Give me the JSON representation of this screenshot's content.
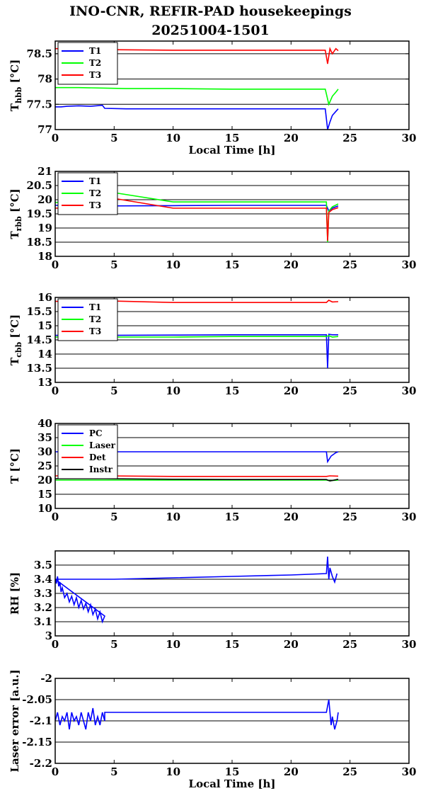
{
  "page": {
    "title_line1": "INO-CNR, REFIR-PAD housekeepings",
    "title_line2": "20251004-1501"
  },
  "chart_data": [
    {
      "type": "line",
      "ylabel_main": "T",
      "ylabel_sub": "hbb",
      "ylabel_tail": " [°C]",
      "xlabel": "Local Time [h]",
      "xlim": [
        0,
        30
      ],
      "ylim": [
        77,
        78.75
      ],
      "xticks": [
        0,
        5,
        10,
        15,
        20,
        25,
        30
      ],
      "yticks": [
        77,
        77.5,
        78,
        78.5
      ],
      "ytick_labels": [
        "77",
        "77.5",
        "78",
        "78.5"
      ],
      "grid": true,
      "legend_position": "top-left",
      "series": [
        {
          "name": "T1",
          "color": "#0000ff",
          "x": [
            0,
            0.5,
            1,
            2,
            3,
            4,
            4.2,
            6,
            10,
            15,
            20,
            22.9,
            23.1,
            23.3,
            23.5,
            23.8,
            24
          ],
          "y": [
            77.45,
            77.45,
            77.46,
            77.47,
            77.46,
            77.48,
            77.42,
            77.41,
            77.41,
            77.41,
            77.41,
            77.41,
            77.0,
            77.15,
            77.28,
            77.36,
            77.41
          ]
        },
        {
          "name": "T2",
          "color": "#00ff00",
          "x": [
            0,
            2,
            4.2,
            6,
            10,
            15,
            20,
            22.9,
            23.2,
            23.5,
            23.8,
            24
          ],
          "y": [
            77.83,
            77.83,
            77.82,
            77.81,
            77.81,
            77.8,
            77.8,
            77.8,
            77.5,
            77.66,
            77.74,
            77.8
          ]
        },
        {
          "name": "T3",
          "color": "#ff0000",
          "x": [
            0,
            2,
            4.2,
            10,
            15,
            20,
            22.9,
            23.1,
            23.3,
            23.5,
            23.8,
            24
          ],
          "y": [
            78.6,
            78.6,
            78.58,
            78.57,
            78.57,
            78.57,
            78.57,
            78.3,
            78.6,
            78.5,
            78.6,
            78.56
          ]
        }
      ]
    },
    {
      "type": "line",
      "ylabel_main": "T",
      "ylabel_sub": "rbb",
      "ylabel_tail": " [°C]",
      "xlabel": "",
      "xlim": [
        0,
        30
      ],
      "ylim": [
        18,
        21
      ],
      "xticks": [
        0,
        5,
        10,
        15,
        20,
        25,
        30
      ],
      "yticks": [
        18,
        18.5,
        19,
        19.5,
        20,
        20.5,
        21
      ],
      "ytick_labels": [
        "18",
        "18.5",
        "19",
        "19.5",
        "20",
        "20.5",
        "21"
      ],
      "grid": true,
      "legend_position": "top-left",
      "series": [
        {
          "name": "T1",
          "color": "#0000ff",
          "x": [
            0,
            4,
            4.2,
            10,
            15,
            20,
            23,
            23.2,
            23.5,
            24
          ],
          "y": [
            19.8,
            19.8,
            19.78,
            19.79,
            19.8,
            19.8,
            19.8,
            19.6,
            19.7,
            19.78
          ]
        },
        {
          "name": "T2",
          "color": "#00ff00",
          "x": [
            0,
            4,
            4.2,
            10,
            15,
            20,
            23,
            23.1,
            23.2,
            23.5,
            24
          ],
          "y": [
            19.9,
            19.95,
            20.3,
            19.92,
            19.92,
            19.92,
            19.92,
            18.5,
            19.6,
            19.75,
            19.85
          ]
        },
        {
          "name": "T3",
          "color": "#ff0000",
          "x": [
            0,
            4,
            4.2,
            10,
            15,
            20,
            23,
            23.1,
            23.2,
            23.5,
            24
          ],
          "y": [
            19.7,
            19.72,
            20.1,
            19.7,
            19.7,
            19.7,
            19.7,
            18.55,
            19.55,
            19.65,
            19.72
          ]
        }
      ]
    },
    {
      "type": "line",
      "ylabel_main": "T",
      "ylabel_sub": "cbb",
      "ylabel_tail": " [°C]",
      "xlabel": "",
      "xlim": [
        0,
        30
      ],
      "ylim": [
        13,
        16
      ],
      "xticks": [
        0,
        5,
        10,
        15,
        20,
        25,
        30
      ],
      "yticks": [
        13,
        13.5,
        14,
        14.5,
        15,
        15.5,
        16
      ],
      "ytick_labels": [
        "13",
        "13.5",
        "14",
        "14.5",
        "15",
        "15.5",
        "16"
      ],
      "grid": true,
      "legend_position": "top-left",
      "series": [
        {
          "name": "T1",
          "color": "#0000ff",
          "x": [
            0,
            4.2,
            10,
            15,
            20,
            23,
            23.1,
            23.2,
            23.5,
            24
          ],
          "y": [
            14.66,
            14.66,
            14.67,
            14.68,
            14.68,
            14.68,
            13.5,
            14.7,
            14.68,
            14.68
          ]
        },
        {
          "name": "T2",
          "color": "#00ff00",
          "x": [
            0,
            4.2,
            10,
            15,
            20,
            23,
            23.2,
            23.5,
            24
          ],
          "y": [
            14.6,
            14.6,
            14.6,
            14.62,
            14.62,
            14.62,
            14.65,
            14.6,
            14.62
          ]
        },
        {
          "name": "T3",
          "color": "#ff0000",
          "x": [
            0,
            4.2,
            10,
            15,
            20,
            23,
            23.2,
            23.5,
            24
          ],
          "y": [
            15.86,
            15.88,
            15.82,
            15.82,
            15.82,
            15.82,
            15.9,
            15.84,
            15.85
          ]
        }
      ]
    },
    {
      "type": "line",
      "ylabel_main": "T [°C]",
      "ylabel_sub": "",
      "ylabel_tail": "",
      "xlabel": "",
      "xlim": [
        0,
        30
      ],
      "ylim": [
        10,
        40
      ],
      "xticks": [
        0,
        5,
        10,
        15,
        20,
        25,
        30
      ],
      "yticks": [
        10,
        15,
        20,
        25,
        30,
        35,
        40
      ],
      "ytick_labels": [
        "10",
        "15",
        "20",
        "25",
        "30",
        "35",
        "40"
      ],
      "grid": true,
      "legend_position": "top-left",
      "series": [
        {
          "name": "PC",
          "color": "#0000ff",
          "x": [
            0,
            4.2,
            10,
            15,
            20,
            23,
            23.1,
            23.4,
            23.8,
            24
          ],
          "y": [
            30,
            30,
            30,
            30,
            30,
            30,
            26.5,
            28.5,
            29.7,
            30
          ]
        },
        {
          "name": "Laser",
          "color": "#00ff00",
          "x": [
            0,
            4.2,
            10,
            15,
            20,
            23,
            23.3,
            24
          ],
          "y": [
            20,
            20,
            20,
            20,
            20,
            20,
            19.8,
            20
          ]
        },
        {
          "name": "Det",
          "color": "#ff0000",
          "x": [
            0,
            4.2,
            10,
            15,
            20,
            23,
            23.3,
            24
          ],
          "y": [
            21.5,
            21.5,
            21.3,
            21.3,
            21.3,
            21.3,
            21.5,
            21.4
          ]
        },
        {
          "name": "Instr",
          "color": "#000000",
          "x": [
            0,
            4.2,
            10,
            15,
            20,
            23,
            23.3,
            24
          ],
          "y": [
            20.5,
            20.5,
            20.3,
            20.2,
            20.2,
            20.2,
            19.7,
            20.3
          ]
        }
      ]
    },
    {
      "type": "line",
      "ylabel_main": "RH [%]",
      "ylabel_sub": "",
      "ylabel_tail": "",
      "xlabel": "",
      "xlim": [
        0,
        30
      ],
      "ylim": [
        3,
        3.6
      ],
      "xticks": [
        0,
        5,
        10,
        15,
        20,
        25,
        30
      ],
      "yticks": [
        3,
        3.1,
        3.2,
        3.3,
        3.4,
        3.5
      ],
      "ytick_labels": [
        "3",
        "3.1",
        "3.2",
        "3.3",
        "3.4",
        "3.5"
      ],
      "grid": true,
      "legend_position": "none",
      "series": [
        {
          "name": "",
          "color": "#0000ff",
          "x": [
            0,
            0.1,
            0.2,
            0.3,
            0.4,
            0.5,
            0.6,
            0.8,
            1.0,
            1.2,
            1.4,
            1.6,
            1.8,
            2.0,
            2.2,
            2.4,
            2.6,
            2.8,
            3.0,
            3.2,
            3.4,
            3.6,
            3.8,
            4.0,
            4.2,
            0,
            5,
            10,
            15,
            20,
            23,
            23.1,
            23.2,
            23.3,
            23.5,
            23.7,
            23.9
          ],
          "y": [
            3.4,
            3.37,
            3.42,
            3.35,
            3.38,
            3.31,
            3.34,
            3.27,
            3.3,
            3.24,
            3.28,
            3.22,
            3.27,
            3.2,
            3.25,
            3.19,
            3.23,
            3.17,
            3.22,
            3.15,
            3.19,
            3.12,
            3.17,
            3.1,
            3.14,
            3.4,
            3.4,
            3.41,
            3.42,
            3.43,
            3.44,
            3.56,
            3.4,
            3.48,
            3.42,
            3.38,
            3.44
          ]
        }
      ]
    },
    {
      "type": "line",
      "ylabel_main": "Laser error [a.u.]",
      "ylabel_sub": "",
      "ylabel_tail": "",
      "xlabel": "Local Time [h]",
      "xlim": [
        0,
        30
      ],
      "ylim": [
        -2.2,
        -2
      ],
      "xticks": [
        0,
        5,
        10,
        15,
        20,
        25,
        30
      ],
      "yticks": [
        -2.2,
        -2.15,
        -2.1,
        -2.05,
        -2
      ],
      "ytick_labels": [
        "-2.2",
        "-2.15",
        "-2.1",
        "-2.05",
        "-2"
      ],
      "grid": true,
      "legend_position": "none",
      "series": [
        {
          "name": "",
          "color": "#0000ff",
          "x": [
            0,
            0.2,
            0.4,
            0.6,
            0.8,
            1.0,
            1.2,
            1.4,
            1.6,
            1.8,
            2.0,
            2.2,
            2.4,
            2.6,
            2.8,
            3.0,
            3.2,
            3.4,
            3.6,
            3.8,
            4.0,
            4.2,
            4.2,
            10,
            15,
            20,
            23.0,
            23.2,
            23.4,
            23.5,
            23.7,
            23.9,
            24
          ],
          "y": [
            -2.1,
            -2.08,
            -2.11,
            -2.09,
            -2.1,
            -2.08,
            -2.12,
            -2.08,
            -2.1,
            -2.09,
            -2.11,
            -2.08,
            -2.1,
            -2.12,
            -2.08,
            -2.1,
            -2.07,
            -2.11,
            -2.09,
            -2.11,
            -2.08,
            -2.1,
            -2.08,
            -2.08,
            -2.08,
            -2.08,
            -2.08,
            -2.05,
            -2.11,
            -2.09,
            -2.12,
            -2.1,
            -2.08
          ]
        }
      ]
    }
  ]
}
